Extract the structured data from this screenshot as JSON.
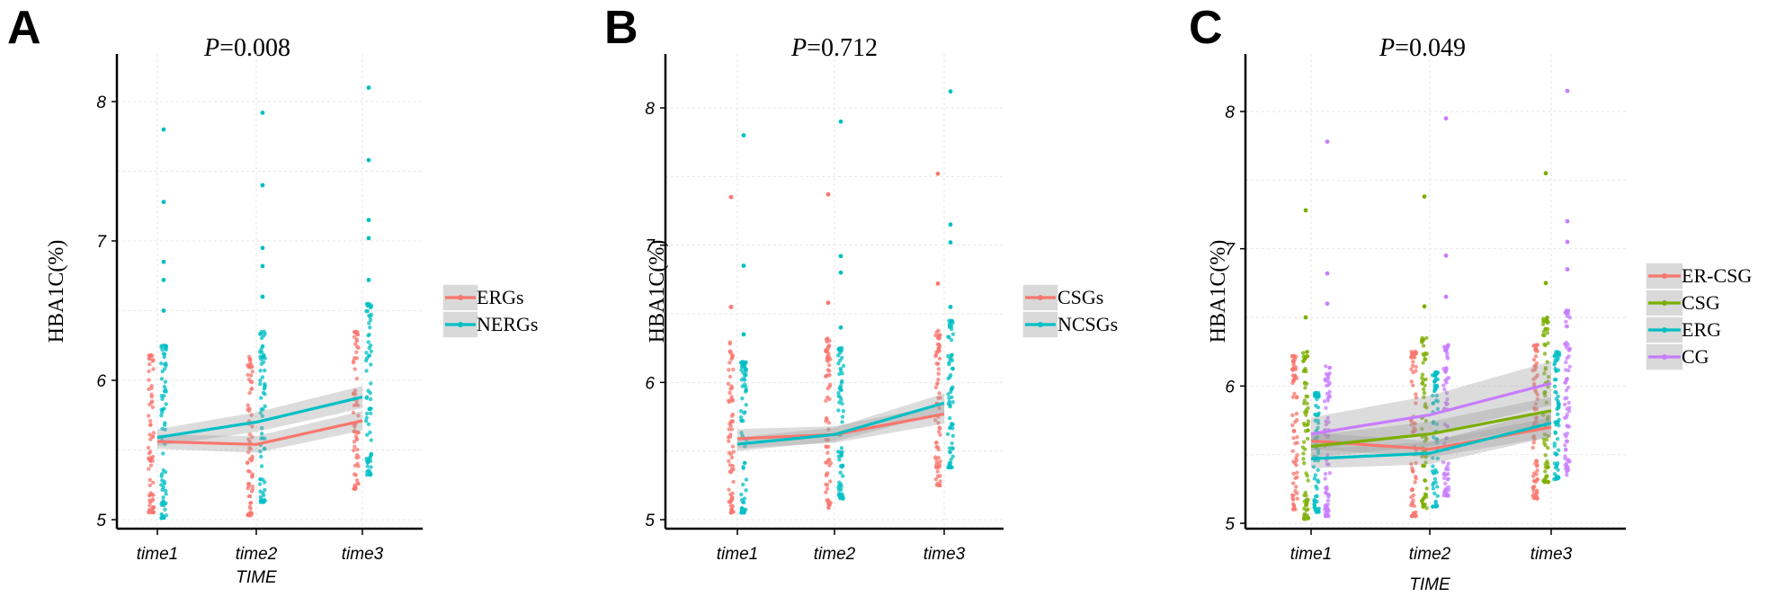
{
  "chart_data": [
    {
      "panel": "A",
      "type": "line",
      "title": "P=0.008",
      "title_p": "P",
      "title_val": "=0.008",
      "xlabel": "TIME",
      "ylabel": "HBA1C(%)",
      "categories": [
        "time1",
        "time2",
        "time3"
      ],
      "yticks": [
        5,
        6,
        7,
        8
      ],
      "ylim": [
        4.95,
        8.3
      ],
      "series": [
        {
          "name": "ERGs",
          "color": "#F8766D",
          "values": [
            5.56,
            5.54,
            5.71
          ],
          "ci": [
            0.05,
            0.06,
            0.07
          ],
          "points": [
            [
              5.05,
              6.18
            ],
            [
              5.03,
              6.17
            ],
            [
              5.22,
              6.35
            ]
          ],
          "outliers": [
            [],
            [],
            []
          ]
        },
        {
          "name": "NERGs",
          "color": "#00BFC4",
          "values": [
            5.59,
            5.7,
            5.88
          ],
          "ci": [
            0.06,
            0.07,
            0.08
          ],
          "points": [
            [
              5.01,
              6.25
            ],
            [
              5.12,
              6.35
            ],
            [
              5.32,
              6.55
            ]
          ],
          "outliers": [
            [
              6.5,
              6.72,
              6.85,
              7.28,
              7.8
            ],
            [
              6.6,
              6.82,
              6.95,
              7.4,
              7.92
            ],
            [
              6.72,
              7.02,
              7.15,
              7.58,
              8.1
            ]
          ]
        }
      ]
    },
    {
      "panel": "B",
      "type": "line",
      "title": "P=0.712",
      "title_p": "P",
      "title_val": "=0.712",
      "xlabel": "",
      "ylabel": "HBA1C(%)",
      "categories": [
        "time1",
        "time2",
        "time3"
      ],
      "yticks": [
        5,
        6,
        7,
        8
      ],
      "ylim": [
        4.95,
        8.3
      ],
      "series": [
        {
          "name": "CSGs",
          "color": "#F8766D",
          "values": [
            5.59,
            5.62,
            5.77
          ],
          "ci": [
            0.07,
            0.06,
            0.07
          ],
          "points": [
            [
              5.05,
              6.3
            ],
            [
              5.08,
              6.32
            ],
            [
              5.25,
              6.38
            ]
          ],
          "outliers": [
            [
              6.55,
              7.35
            ],
            [
              6.58,
              7.37
            ],
            [
              6.72,
              7.52
            ]
          ]
        },
        {
          "name": "NCSGs",
          "color": "#00BFC4",
          "values": [
            5.55,
            5.62,
            5.85
          ],
          "ci": [
            0.05,
            0.05,
            0.07
          ],
          "points": [
            [
              5.05,
              6.15
            ],
            [
              5.15,
              6.25
            ],
            [
              5.38,
              6.45
            ]
          ],
          "outliers": [
            [
              6.35,
              6.85,
              7.8
            ],
            [
              6.4,
              6.8,
              6.92,
              7.9
            ],
            [
              6.55,
              7.02,
              7.15,
              8.12
            ]
          ]
        }
      ]
    },
    {
      "panel": "C",
      "type": "line",
      "title": "P=0.049",
      "title_p": "P",
      "title_val": "=0.049",
      "xlabel": "TIME",
      "ylabel": "HBA1C(%)",
      "categories": [
        "time1",
        "time2",
        "time3"
      ],
      "yticks": [
        5,
        6,
        7,
        8
      ],
      "ylim": [
        4.95,
        8.3
      ],
      "series": [
        {
          "name": "ER-CSG",
          "color": "#F8766D",
          "values": [
            5.6,
            5.54,
            5.7
          ],
          "ci": [
            0.06,
            0.06,
            0.07
          ],
          "points": [
            [
              5.1,
              6.22
            ],
            [
              5.05,
              6.25
            ],
            [
              5.18,
              6.3
            ]
          ],
          "outliers": [
            [],
            [],
            []
          ]
        },
        {
          "name": "CSG",
          "color": "#7CAE00",
          "values": [
            5.56,
            5.65,
            5.82
          ],
          "ci": [
            0.08,
            0.09,
            0.1
          ],
          "points": [
            [
              5.03,
              6.25
            ],
            [
              5.1,
              6.35
            ],
            [
              5.3,
              6.5
            ]
          ],
          "outliers": [
            [
              6.5,
              7.28
            ],
            [
              6.58,
              7.38
            ],
            [
              6.75,
              7.55
            ]
          ]
        },
        {
          "name": "ERG",
          "color": "#00BFC4",
          "values": [
            5.47,
            5.51,
            5.73
          ],
          "ci": [
            0.07,
            0.08,
            0.1
          ],
          "points": [
            [
              5.08,
              5.95
            ],
            [
              5.12,
              6.1
            ],
            [
              5.32,
              6.25
            ]
          ],
          "outliers": [
            [],
            [],
            []
          ]
        },
        {
          "name": "CG",
          "color": "#C77CFF",
          "values": [
            5.65,
            5.79,
            6.02
          ],
          "ci": [
            0.12,
            0.14,
            0.16
          ],
          "points": [
            [
              5.05,
              6.15
            ],
            [
              5.2,
              6.3
            ],
            [
              5.35,
              6.55
            ]
          ],
          "outliers": [
            [
              6.6,
              6.82,
              7.78
            ],
            [
              6.65,
              6.95,
              7.95
            ],
            [
              6.85,
              7.05,
              7.2,
              8.15
            ]
          ]
        }
      ]
    }
  ]
}
